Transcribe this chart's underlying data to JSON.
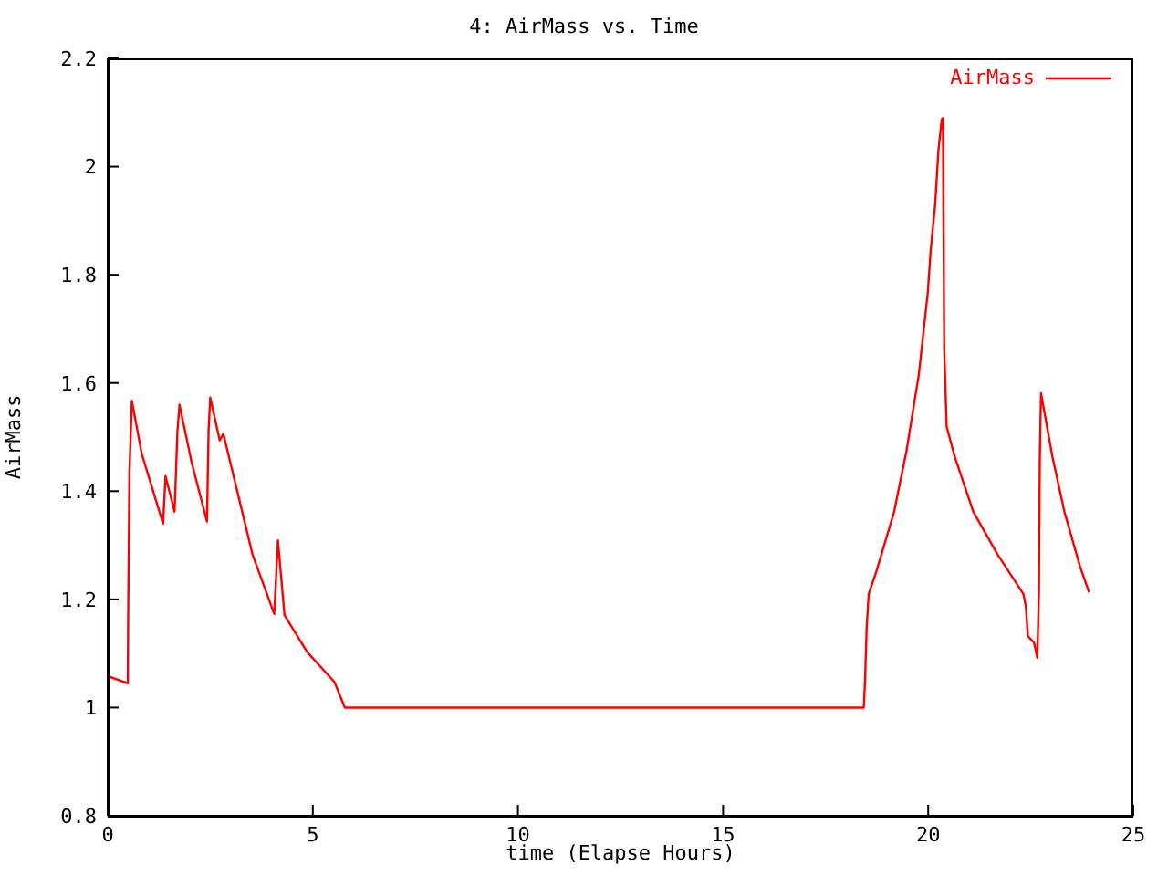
{
  "chart_data": {
    "type": "line",
    "title": "4: AirMass vs. Time",
    "xlabel": "time (Elapse Hours)",
    "ylabel": "AirMass",
    "xlim": [
      0,
      25
    ],
    "xticks": [
      0,
      5,
      10,
      15,
      20,
      25
    ],
    "ylim": [
      0.8,
      2.2
    ],
    "yticks": [
      0.8,
      1,
      1.2,
      1.4,
      1.6,
      1.8,
      2,
      2.2
    ],
    "grid": false,
    "legend": "top right",
    "marker": "none",
    "line_style": "solid",
    "series": [
      {
        "name": "AirMass",
        "color": "#ff0000",
        "x": [
          0,
          0.04,
          0.49,
          0.5,
          0.53,
          0.59,
          0.83,
          1.35,
          1.41,
          1.63,
          1.7,
          1.75,
          2.05,
          2.42,
          2.46,
          2.5,
          2.73,
          2.82,
          3.53,
          4.06,
          4.15,
          4.31,
          4.86,
          5.53,
          5.78,
          18.43,
          18.46,
          18.5,
          18.55,
          18.73,
          19.17,
          19.47,
          19.77,
          19.99,
          20.06,
          20.17,
          20.25,
          20.33,
          20.36,
          20.39,
          20.45,
          20.65,
          21.1,
          21.69,
          22.32,
          22.38,
          22.43,
          22.58,
          22.66,
          22.7,
          22.72,
          22.75,
          23.03,
          23.32,
          23.7,
          23.92
        ],
        "values": [
          1.055,
          1.057,
          1.045,
          1.173,
          1.435,
          1.567,
          1.469,
          1.34,
          1.428,
          1.362,
          1.51,
          1.56,
          1.452,
          1.344,
          1.514,
          1.573,
          1.494,
          1.506,
          1.283,
          1.173,
          1.309,
          1.171,
          1.103,
          1.047,
          1.0,
          1.0,
          1.049,
          1.148,
          1.21,
          1.25,
          1.362,
          1.474,
          1.615,
          1.767,
          1.845,
          1.93,
          2.031,
          2.087,
          2.09,
          1.665,
          1.519,
          1.463,
          1.362,
          1.283,
          1.21,
          1.188,
          1.132,
          1.12,
          1.092,
          1.216,
          1.457,
          1.581,
          1.463,
          1.362,
          1.261,
          1.213
        ]
      }
    ]
  }
}
